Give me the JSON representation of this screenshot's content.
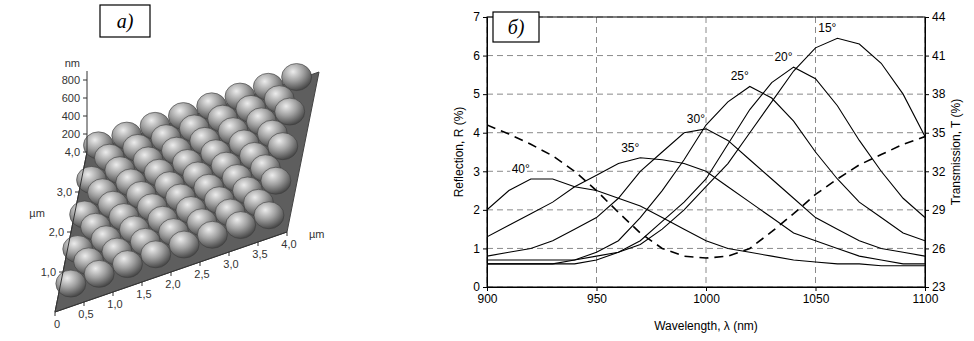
{
  "chart_data": [
    {
      "type": "surface",
      "title": "а)",
      "x_label": "µm",
      "y_label": "µm",
      "z_label": "nm",
      "xlim": [
        0,
        4
      ],
      "xticks": [
        0,
        {
          "value": 0.5,
          "label": "0,5"
        },
        {
          "value": 1,
          "label": "1,0"
        },
        {
          "value": 1.5,
          "label": "1,5"
        },
        {
          "value": 2,
          "label": "2,0"
        },
        {
          "value": 2.5,
          "label": "2,5"
        },
        {
          "value": 3,
          "label": "3,0"
        },
        {
          "value": 3.5,
          "label": "3,5"
        },
        {
          "value": 4,
          "label": "4,0"
        }
      ],
      "ylim": [
        0,
        4
      ],
      "yticks": [
        {
          "value": 1,
          "label": "1,0"
        },
        {
          "value": 2,
          "label": "2,0"
        },
        {
          "value": 3,
          "label": "3,0"
        },
        {
          "value": 4,
          "label": "4,0"
        }
      ],
      "zlim": [
        0,
        900
      ],
      "zticks": [
        200,
        400,
        600,
        800
      ]
    },
    {
      "type": "line",
      "title": "б)",
      "x_label": "Wavelength, λ (nm)",
      "y_label": "Reflection, R (%)",
      "y2_label": "Transmission, T (%)",
      "x": [
        900,
        910,
        920,
        930,
        940,
        950,
        960,
        970,
        980,
        990,
        1000,
        1010,
        1020,
        1030,
        1040,
        1050,
        1060,
        1070,
        1080,
        1090,
        1100
      ],
      "xlim": [
        900,
        1100
      ],
      "xticks": [
        900,
        950,
        1000,
        1050,
        1100
      ],
      "ylim": [
        0,
        7
      ],
      "yticks": [
        0,
        1,
        2,
        3,
        4,
        5,
        6,
        7
      ],
      "y2lim": [
        23,
        44
      ],
      "y2ticks": [
        23,
        26,
        29,
        32,
        35,
        38,
        41,
        44
      ],
      "grid": true,
      "series": [
        {
          "name": "15°",
          "color": "#000000",
          "line_style": "solid",
          "values": [
            0.6,
            0.6,
            0.6,
            0.6,
            0.7,
            0.8,
            0.9,
            1.1,
            1.5,
            2.0,
            2.6,
            3.2,
            4.0,
            4.8,
            5.6,
            6.2,
            6.45,
            6.3,
            5.8,
            5.0,
            3.9
          ]
        },
        {
          "name": "20°",
          "color": "#000000",
          "line_style": "solid",
          "values": [
            0.6,
            0.6,
            0.6,
            0.6,
            0.6,
            0.7,
            0.9,
            1.2,
            1.7,
            2.2,
            2.8,
            3.7,
            4.6,
            5.3,
            5.7,
            5.4,
            4.7,
            3.8,
            3.0,
            2.3,
            1.8
          ]
        },
        {
          "name": "25°",
          "color": "#000000",
          "line_style": "solid",
          "values": [
            0.7,
            0.7,
            0.7,
            0.7,
            0.7,
            0.9,
            1.2,
            1.8,
            2.5,
            3.3,
            4.2,
            4.8,
            5.2,
            4.9,
            4.3,
            3.5,
            2.8,
            2.2,
            1.8,
            1.4,
            1.2
          ]
        },
        {
          "name": "30°",
          "color": "#000000",
          "line_style": "solid",
          "values": [
            0.8,
            0.9,
            1.0,
            1.2,
            1.5,
            1.8,
            2.3,
            3.0,
            3.5,
            4.0,
            4.1,
            3.8,
            3.3,
            2.8,
            2.3,
            1.8,
            1.5,
            1.2,
            1.0,
            0.9,
            0.8
          ]
        },
        {
          "name": "35°",
          "color": "#000000",
          "line_style": "solid",
          "values": [
            1.3,
            1.6,
            1.9,
            2.2,
            2.6,
            2.9,
            3.2,
            3.35,
            3.3,
            3.2,
            3.0,
            2.6,
            2.2,
            1.8,
            1.4,
            1.2,
            1.0,
            0.8,
            0.7,
            0.6,
            0.6
          ]
        },
        {
          "name": "40°",
          "color": "#000000",
          "line_style": "solid",
          "values": [
            2.0,
            2.5,
            2.8,
            2.8,
            2.6,
            2.5,
            2.3,
            2.1,
            1.8,
            1.5,
            1.2,
            1.0,
            0.9,
            0.8,
            0.7,
            0.65,
            0.6,
            0.6,
            0.55,
            0.55,
            0.55
          ]
        },
        {
          "axis": "y2",
          "color": "#000000",
          "line_style": "dashed",
          "values": [
            35.6,
            34.9,
            34.1,
            33.2,
            32.0,
            30.5,
            28.8,
            27.2,
            26.0,
            25.4,
            25.25,
            25.4,
            26.0,
            27.3,
            28.7,
            30.2,
            31.4,
            32.5,
            33.3,
            34.1,
            34.7
          ]
        }
      ]
    }
  ]
}
